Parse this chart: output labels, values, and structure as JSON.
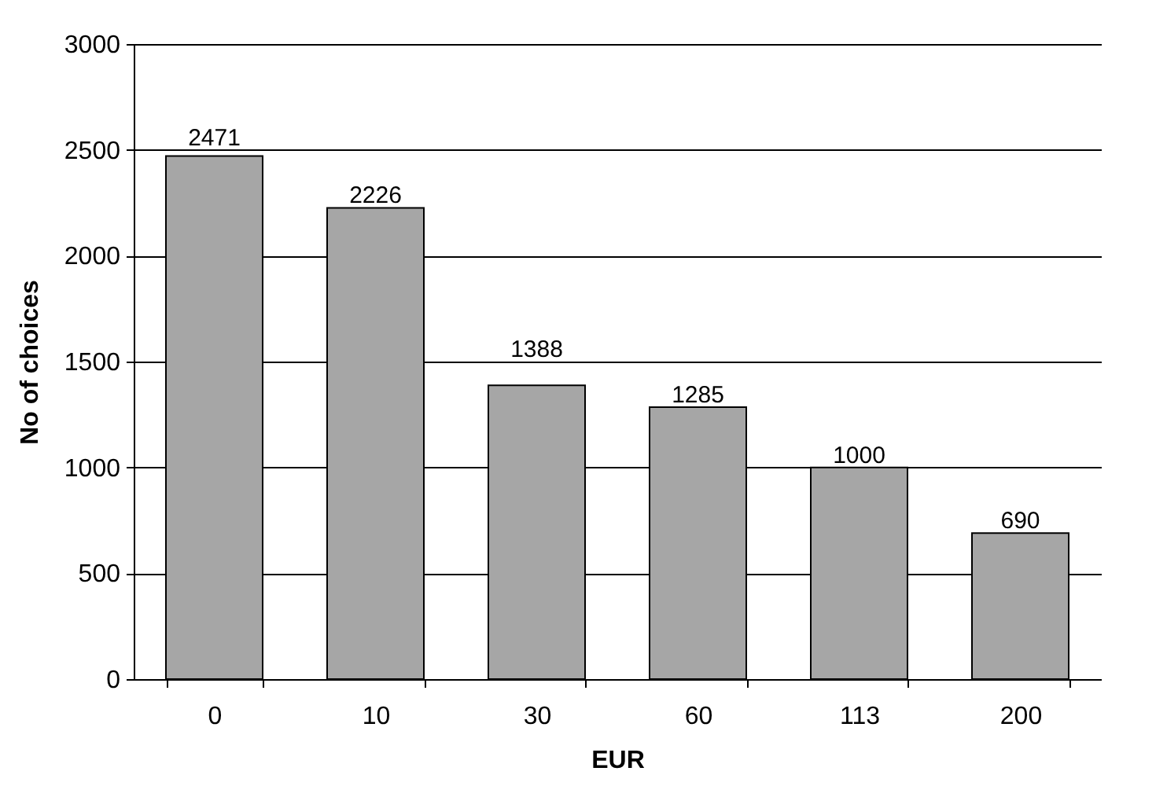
{
  "chart_data": {
    "type": "bar",
    "xlabel": "EUR",
    "ylabel": "No of choices",
    "categories": [
      "0",
      "10",
      "30",
      "60",
      "113",
      "200"
    ],
    "values": [
      2471,
      2226,
      1388,
      1285,
      1000,
      690
    ],
    "color": "#a6a6a6",
    "ylim": [
      0,
      3000
    ],
    "yticks": [
      0,
      500,
      1000,
      1500,
      2000,
      2500,
      3000
    ],
    "grid": "y",
    "data_labels": true
  }
}
